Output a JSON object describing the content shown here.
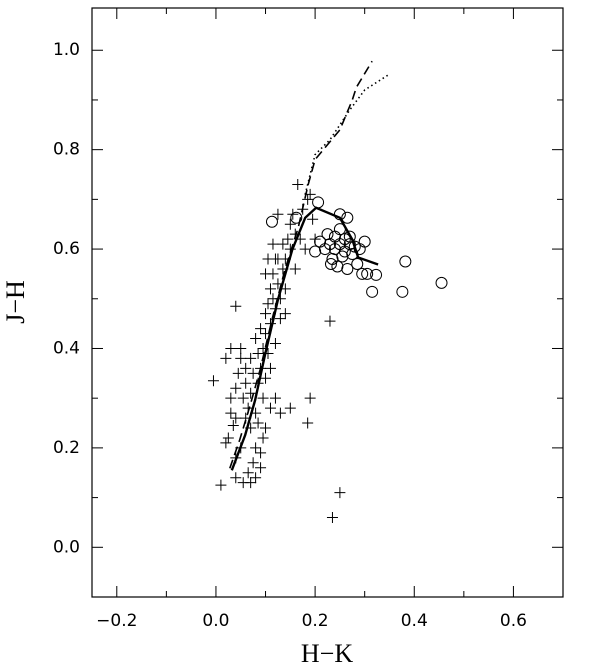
{
  "chart_data": {
    "type": "scatter",
    "xlabel": "H−K",
    "ylabel": "J−H",
    "xlim": [
      -0.25,
      0.7
    ],
    "ylim": [
      -0.1,
      1.085
    ],
    "xticks": [
      {
        "value": -0.2,
        "label": "−0.2"
      },
      {
        "value": 0.0,
        "label": "0.0"
      },
      0.2,
      0.4,
      0.6
    ],
    "yticks": [
      {
        "value": 0.0,
        "label": "0.0"
      },
      0.2,
      0.4,
      0.6,
      0.8,
      {
        "value": 1.0,
        "label": "1.0"
      }
    ],
    "xticks_minor": [
      -0.1,
      0.1,
      0.3,
      0.5
    ],
    "yticks_minor": [
      -0.1,
      0.1,
      0.3,
      0.5,
      0.7,
      0.9
    ],
    "color": "#000000",
    "series": [
      {
        "marker": "plus",
        "x": [
          0.01,
          0.02,
          0.025,
          0.03,
          0.03,
          0.035,
          0.04,
          0.04,
          0.04,
          0.04,
          0.045,
          0.05,
          0.05,
          0.05,
          0.055,
          0.055,
          0.06,
          0.06,
          0.06,
          0.065,
          0.065,
          0.07,
          0.07,
          0.07,
          0.075,
          0.075,
          0.08,
          0.08,
          0.08,
          0.085,
          0.085,
          0.085,
          0.09,
          0.09,
          0.09,
          0.095,
          0.095,
          0.1,
          0.1,
          0.1,
          0.105,
          0.105,
          0.11,
          0.11,
          0.11,
          0.115,
          0.115,
          0.12,
          0.12,
          0.125,
          0.125,
          0.13,
          0.13,
          0.135,
          0.135,
          0.14,
          0.14,
          0.145,
          0.15,
          0.15,
          0.155,
          0.16,
          0.165,
          0.17,
          0.175,
          0.18,
          0.185,
          0.19,
          0.195,
          0.2,
          0.125,
          0.115,
          0.105,
          0.1,
          0.14,
          0.15,
          0.13,
          0.12,
          0.11,
          0.1,
          0.095,
          0.09,
          0.08,
          0.07,
          0.185,
          0.19,
          0.23,
          0.235,
          0.25,
          0.04,
          -0.005,
          0.02,
          0.03,
          0.12,
          0.16
        ],
        "y": [
          0.125,
          0.21,
          0.22,
          0.27,
          0.3,
          0.245,
          0.14,
          0.18,
          0.26,
          0.32,
          0.35,
          0.2,
          0.38,
          0.4,
          0.3,
          0.13,
          0.26,
          0.33,
          0.36,
          0.15,
          0.28,
          0.24,
          0.38,
          0.31,
          0.17,
          0.35,
          0.2,
          0.27,
          0.42,
          0.25,
          0.33,
          0.39,
          0.19,
          0.36,
          0.44,
          0.3,
          0.4,
          0.43,
          0.34,
          0.47,
          0.39,
          0.49,
          0.45,
          0.52,
          0.36,
          0.5,
          0.55,
          0.48,
          0.41,
          0.53,
          0.58,
          0.5,
          0.46,
          0.56,
          0.61,
          0.58,
          0.52,
          0.62,
          0.6,
          0.65,
          0.67,
          0.63,
          0.73,
          0.62,
          0.68,
          0.6,
          0.7,
          0.71,
          0.66,
          0.62,
          0.67,
          0.61,
          0.58,
          0.55,
          0.47,
          0.28,
          0.27,
          0.3,
          0.28,
          0.24,
          0.22,
          0.16,
          0.14,
          0.13,
          0.25,
          0.3,
          0.455,
          0.06,
          0.11,
          0.485,
          0.335,
          0.38,
          0.4,
          0.58,
          0.56
        ]
      },
      {
        "marker": "circle",
        "x": [
          0.113,
          0.162,
          0.206,
          0.25,
          0.265,
          0.382,
          0.376,
          0.315,
          0.323,
          0.455,
          0.2,
          0.21,
          0.22,
          0.225,
          0.23,
          0.235,
          0.24,
          0.24,
          0.245,
          0.25,
          0.25,
          0.255,
          0.26,
          0.26,
          0.265,
          0.27,
          0.275,
          0.28,
          0.285,
          0.29,
          0.295,
          0.3,
          0.305,
          0.27,
          0.232
        ],
        "y": [
          0.655,
          0.663,
          0.694,
          0.67,
          0.663,
          0.575,
          0.514,
          0.514,
          0.548,
          0.532,
          0.595,
          0.615,
          0.6,
          0.63,
          0.61,
          0.58,
          0.625,
          0.6,
          0.565,
          0.64,
          0.61,
          0.585,
          0.62,
          0.595,
          0.56,
          0.61,
          0.59,
          0.605,
          0.57,
          0.6,
          0.55,
          0.615,
          0.55,
          0.625,
          0.57
        ]
      }
    ],
    "lines": [
      {
        "style": "solid",
        "x": [
          0.032,
          0.059,
          0.079,
          0.099,
          0.125,
          0.154,
          0.18,
          0.202,
          0.25,
          0.275,
          0.287,
          0.327
        ],
        "y": [
          0.155,
          0.226,
          0.296,
          0.387,
          0.498,
          0.599,
          0.663,
          0.683,
          0.663,
          0.619,
          0.583,
          0.569
        ]
      },
      {
        "style": "dashed",
        "x": [
          0.028,
          0.048,
          0.069,
          0.089,
          0.113,
          0.139,
          0.166,
          0.186,
          0.2,
          0.22,
          0.25,
          0.275,
          0.283,
          0.315
        ],
        "y": [
          0.159,
          0.216,
          0.286,
          0.357,
          0.458,
          0.558,
          0.643,
          0.73,
          0.78,
          0.804,
          0.84,
          0.9,
          0.925,
          0.978
        ]
      },
      {
        "style": "dotted",
        "x": [
          0.18,
          0.2,
          0.23,
          0.27,
          0.3,
          0.347
        ],
        "y": [
          0.71,
          0.79,
          0.82,
          0.88,
          0.92,
          0.95
        ]
      }
    ]
  }
}
